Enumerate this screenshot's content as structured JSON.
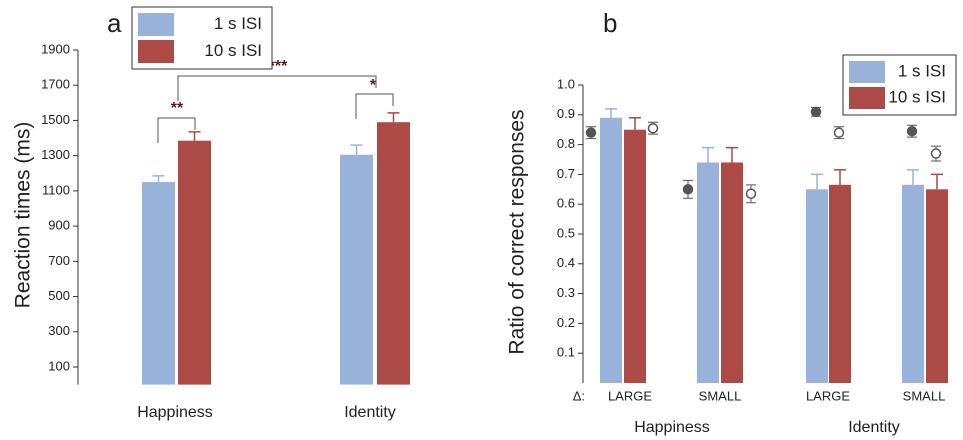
{
  "chart_data": [
    {
      "type": "bar",
      "panel": "a",
      "ylabel": "Reaction times (ms)",
      "categories": [
        "Happiness",
        "Identity"
      ],
      "series": [
        {
          "name": "1 s ISI",
          "color": "#98b2d9",
          "values": [
            1150,
            1305
          ],
          "errors": [
            35,
            55
          ]
        },
        {
          "name": "10 s ISI",
          "color": "#ac4a45",
          "values": [
            1385,
            1490
          ],
          "errors": [
            50,
            53
          ]
        }
      ],
      "annotations": [
        "**",
        "*",
        "***"
      ],
      "ylim": [
        0,
        1900
      ],
      "yticks": [
        100,
        300,
        500,
        700,
        900,
        1100,
        1300,
        1500,
        1700,
        1900
      ]
    },
    {
      "type": "bar",
      "panel": "b",
      "ylabel": "Ratio of correct responses",
      "category_prefix": "Δ:",
      "categories": [
        "LARGE",
        "SMALL",
        "LARGE",
        "SMALL"
      ],
      "groups": [
        "Happiness",
        "Identity"
      ],
      "series": [
        {
          "name": "1 s ISI",
          "color": "#98b2d9",
          "values": [
            0.89,
            0.74,
            0.65,
            0.665
          ],
          "errors": [
            0.03,
            0.05,
            0.05,
            0.05
          ]
        },
        {
          "name": "10 s ISI",
          "color": "#ac4a45",
          "values": [
            0.85,
            0.74,
            0.665,
            0.65
          ],
          "errors": [
            0.04,
            0.05,
            0.05,
            0.05
          ]
        }
      ],
      "markers": [
        {
          "style": "filled",
          "values": [
            0.84,
            0.65,
            0.91,
            0.845
          ],
          "errors": [
            0.02,
            0.03,
            0.015,
            0.02
          ]
        },
        {
          "style": "open",
          "values": [
            0.855,
            0.635,
            0.84,
            0.77
          ],
          "errors": [
            0.02,
            0.03,
            0.02,
            0.025
          ]
        }
      ],
      "ylim": [
        0,
        1
      ],
      "yticks": [
        0.1,
        0.2,
        0.3,
        0.4,
        0.5,
        0.6,
        0.7,
        0.8,
        0.9,
        {
          "value": 1,
          "label": "1.0"
        }
      ]
    }
  ]
}
